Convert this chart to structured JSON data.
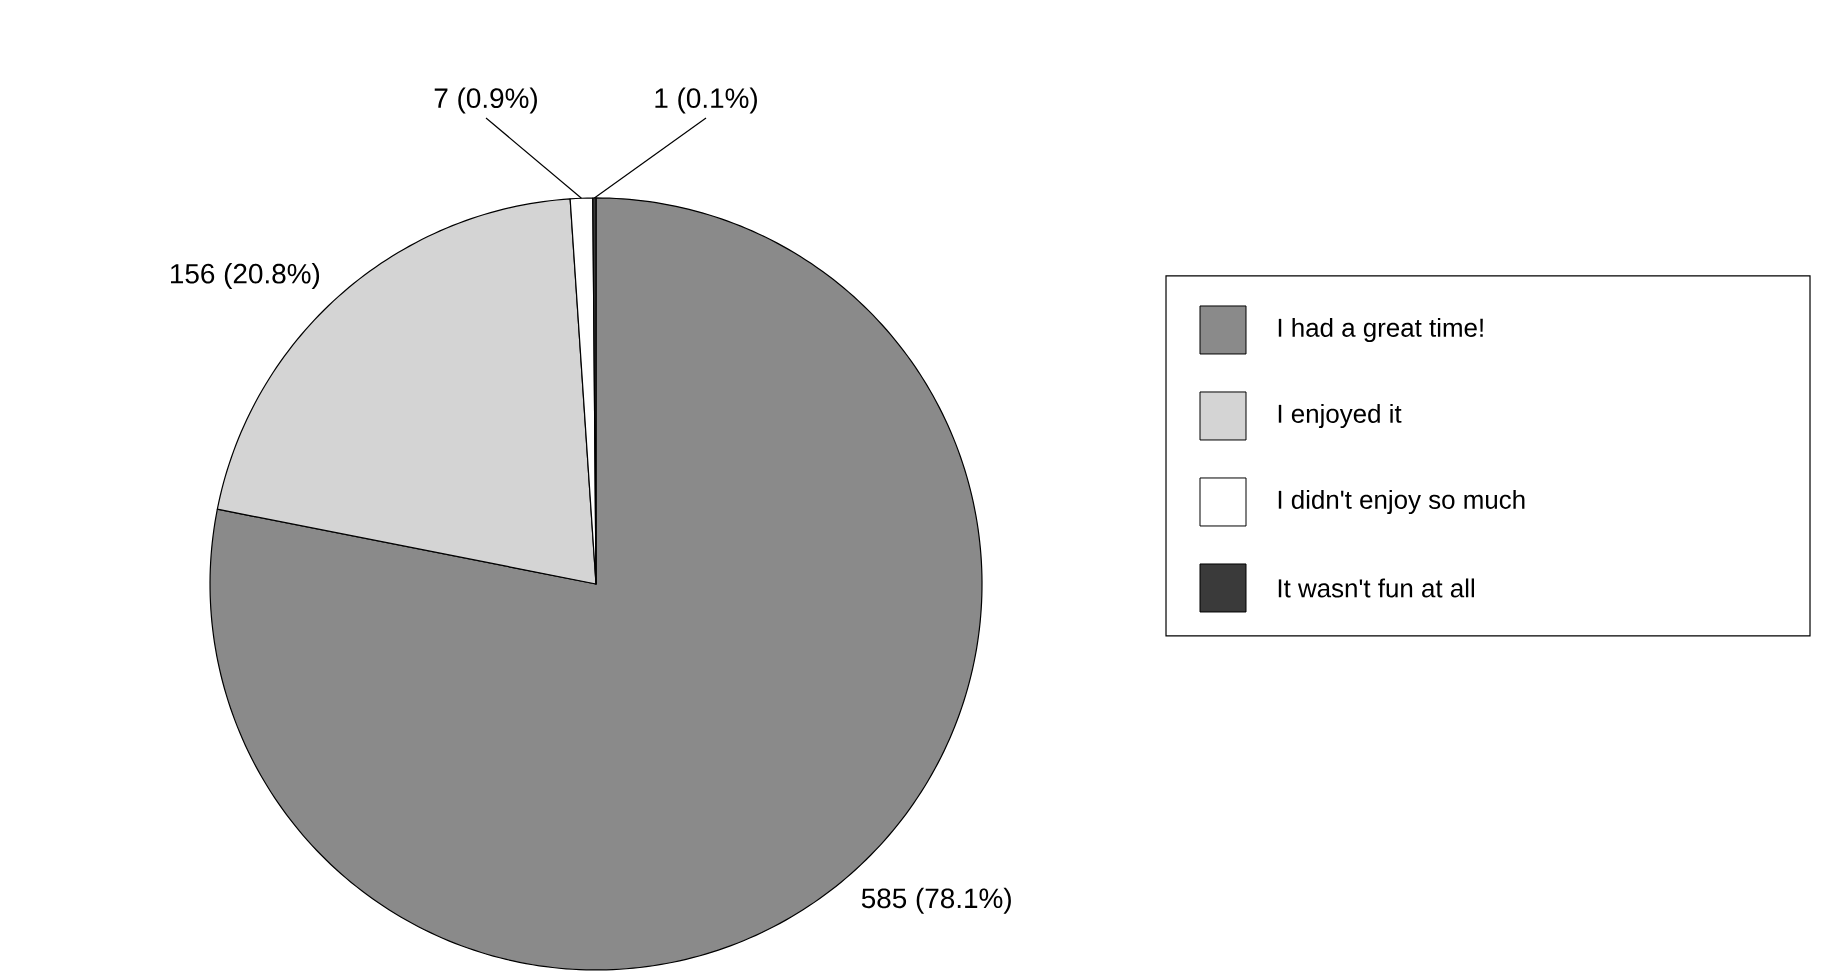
{
  "chart_data": {
    "type": "pie",
    "categories": [
      "I had a great time!",
      "I enjoyed it",
      "I didn't enjoy so much",
      "It wasn't fun at all"
    ],
    "values": [
      585,
      156,
      7,
      1
    ],
    "colors": [
      "#8a8a8a",
      "#d4d4d4",
      "#ffffff",
      "#3a3a3a"
    ],
    "value_labels": [
      "585 (78.1%)",
      "156 (20.8%)",
      "7 (0.9%)",
      "1 (0.1%)"
    ],
    "legend": "right"
  }
}
